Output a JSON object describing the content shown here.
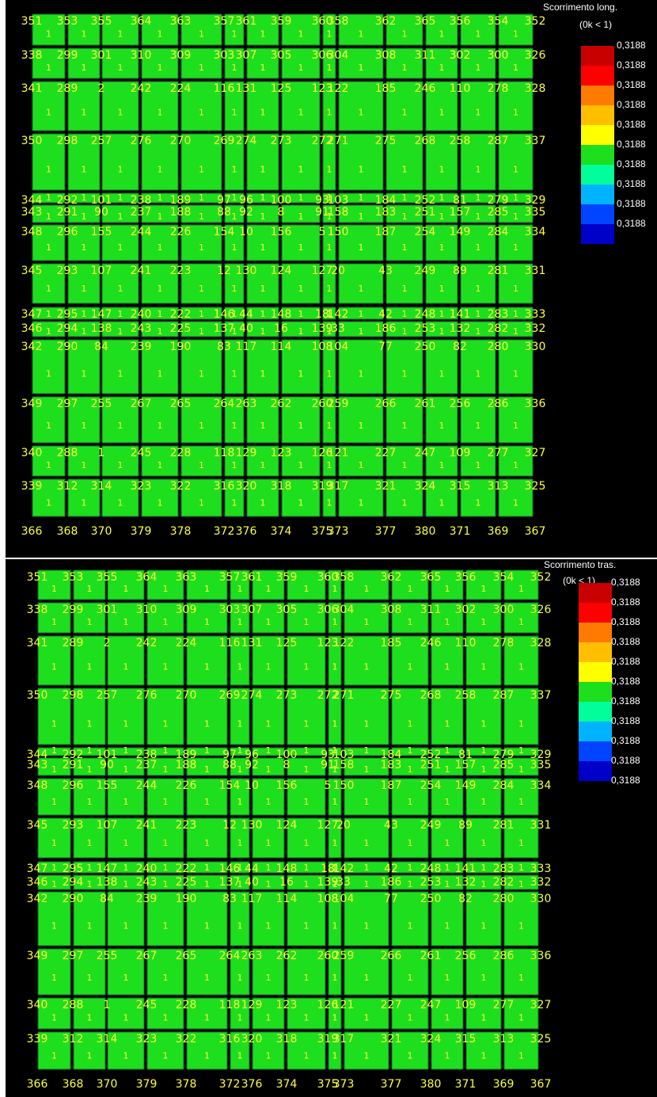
{
  "colors": {
    "background": "#000000",
    "element_fill": "#1ddf1d",
    "element_edge": "#0d6f2a",
    "label": "#ffff3a",
    "legend_scale": [
      "#c80000",
      "#ff0000",
      "#ff7a00",
      "#ffbf00",
      "#ffff00",
      "#1ddf1d",
      "#00ff9a",
      "#00b3ff",
      "#0044ff",
      "#0000c8"
    ]
  },
  "panels": [
    {
      "legend": {
        "title": "Scorrimento long.",
        "subtitle": "(0k < 1)",
        "values": [
          "0,3188",
          "0,3188",
          "0,3188",
          "0,3188",
          "0,3188",
          "0,3188",
          "0,3188",
          "0,3188",
          "0,3188",
          "0,3188"
        ]
      }
    },
    {
      "legend": {
        "title": "Scorrimento tras.",
        "subtitle": "(0k < 1)",
        "values": [
          "0,3188",
          "0,3188",
          "0,3188",
          "0,3188",
          "0,3188",
          "0,3188",
          "0,3188",
          "0,3188",
          "0,3188",
          "0,3188",
          "0,3188"
        ]
      }
    }
  ],
  "mesh": {
    "element_value": "1",
    "rows": [
      [
        "351",
        "353",
        "355",
        "364",
        "363",
        "357",
        "361",
        "359",
        "360",
        "358",
        "362",
        "365",
        "356",
        "354",
        "352"
      ],
      [
        "338",
        "299",
        "301",
        "310",
        "309",
        "303",
        "307",
        "305",
        "306",
        "304",
        "308",
        "311",
        "302",
        "300",
        "326"
      ],
      [
        "341",
        "289",
        "2",
        "242",
        "224",
        "116",
        "131",
        "125",
        "123",
        "122",
        "185",
        "246",
        "110",
        "278",
        "328"
      ],
      [
        "350",
        "298",
        "257",
        "276",
        "270",
        "269",
        "274",
        "273",
        "272",
        "271",
        "275",
        "268",
        "258",
        "287",
        "337"
      ],
      [
        "344",
        "292",
        "101",
        "238",
        "189",
        "97",
        "96",
        "100",
        "93",
        "103",
        "184",
        "252",
        "81",
        "279",
        "329"
      ],
      [
        "343",
        "291",
        "90",
        "237",
        "188",
        "88",
        "92",
        "8",
        "91",
        "158",
        "183",
        "251",
        "157",
        "285",
        "335"
      ],
      [
        "348",
        "296",
        "155",
        "244",
        "226",
        "154",
        "10",
        "156",
        "5",
        "150",
        "187",
        "254",
        "149",
        "284",
        "334"
      ],
      [
        "345",
        "293",
        "107",
        "241",
        "223",
        "12",
        "130",
        "124",
        "127",
        "20",
        "43",
        "249",
        "89",
        "281",
        "331"
      ],
      [
        "347",
        "295",
        "147",
        "240",
        "222",
        "146",
        "44",
        "148",
        "18",
        "142",
        "42",
        "248",
        "141",
        "283",
        "333"
      ],
      [
        "346",
        "294",
        "138",
        "243",
        "225",
        "137",
        "40",
        "16",
        "139",
        "33",
        "186",
        "253",
        "132",
        "282",
        "332"
      ],
      [
        "342",
        "290",
        "84",
        "239",
        "190",
        "83",
        "117",
        "114",
        "108",
        "104",
        "77",
        "250",
        "82",
        "280",
        "330"
      ],
      [
        "349",
        "297",
        "255",
        "267",
        "265",
        "264",
        "263",
        "262",
        "260",
        "259",
        "266",
        "261",
        "256",
        "286",
        "336"
      ],
      [
        "340",
        "288",
        "1",
        "245",
        "228",
        "118",
        "129",
        "123",
        "126",
        "121",
        "227",
        "247",
        "109",
        "277",
        "327"
      ],
      [
        "339",
        "312",
        "314",
        "323",
        "322",
        "316",
        "320",
        "318",
        "319",
        "317",
        "321",
        "324",
        "315",
        "313",
        "325"
      ],
      [
        "366",
        "368",
        "370",
        "379",
        "378",
        "372",
        "376",
        "374",
        "375",
        "373",
        "377",
        "380",
        "371",
        "369",
        "367"
      ]
    ]
  }
}
